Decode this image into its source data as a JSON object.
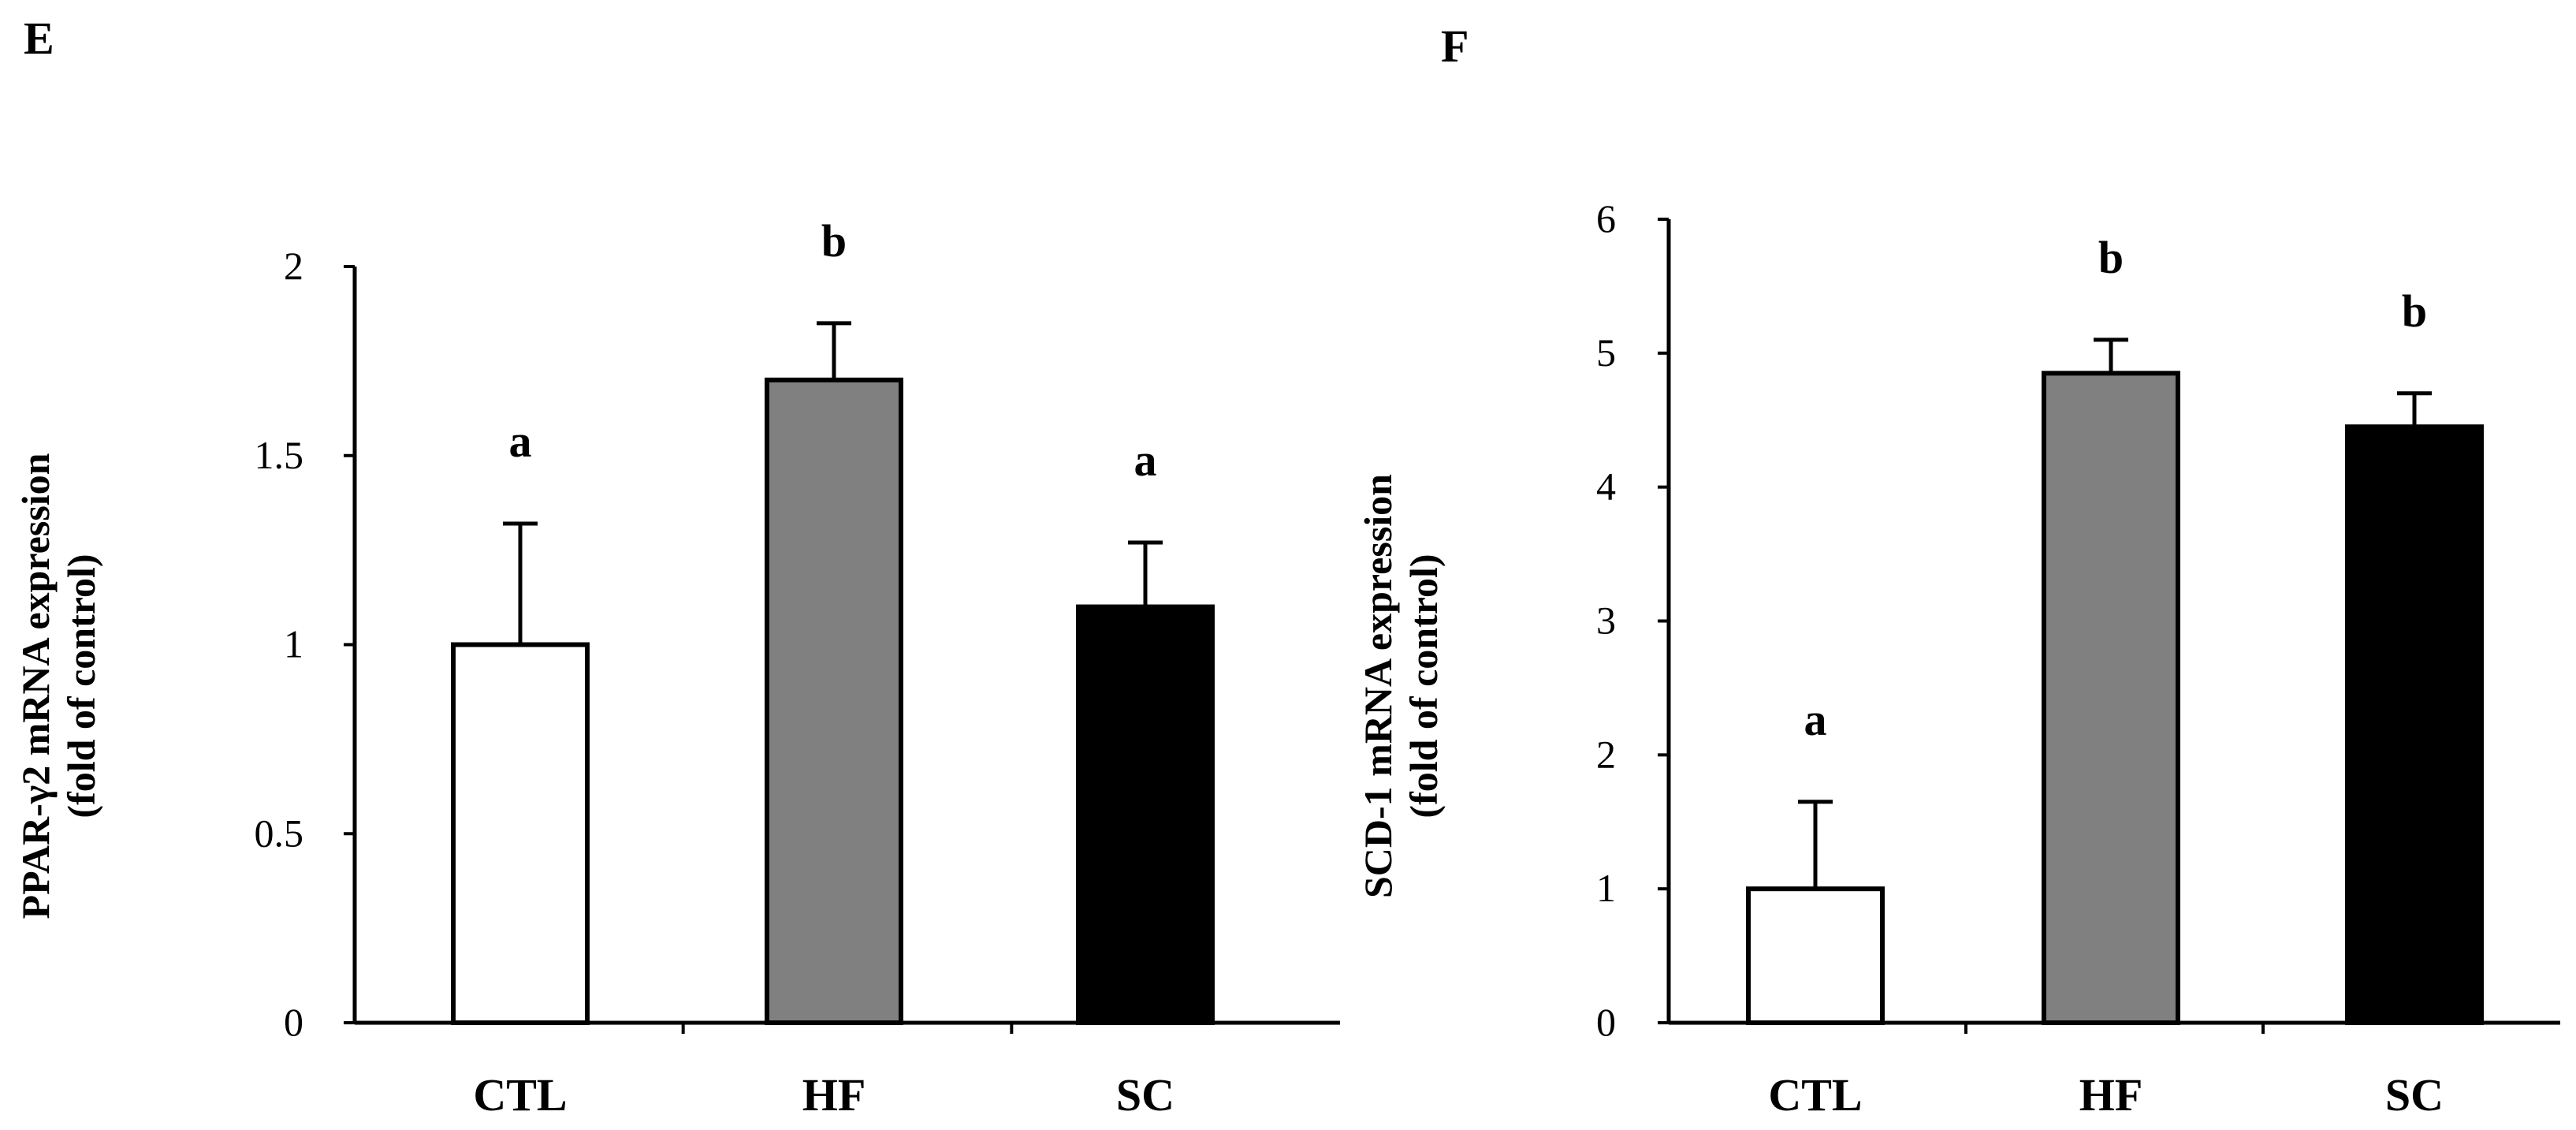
{
  "figure": {
    "panels": [
      "E",
      "F"
    ]
  },
  "chart_data": [
    {
      "panel": "E",
      "type": "bar",
      "categories": [
        "CTL",
        "HF",
        "SC"
      ],
      "values": [
        1.0,
        1.7,
        1.1
      ],
      "errors": [
        0.32,
        0.15,
        0.17
      ],
      "significance": [
        "a",
        "b",
        "a"
      ],
      "bar_colors": [
        "#ffffff",
        "#808080",
        "#000000"
      ],
      "ylabel_line1": "PPAR-γ2 mRNA expression",
      "ylabel_line2": "(fold of control)",
      "xlabel": "",
      "ylim": [
        0,
        2
      ],
      "yticks": [
        0,
        0.5,
        1,
        1.5,
        2
      ],
      "ytick_labels": [
        "0",
        "0.5",
        "1",
        "1.5",
        "2"
      ],
      "grid": false
    },
    {
      "panel": "F",
      "type": "bar",
      "categories": [
        "CTL",
        "HF",
        "SC"
      ],
      "values": [
        1.0,
        4.85,
        4.45
      ],
      "errors": [
        0.65,
        0.25,
        0.25
      ],
      "significance": [
        "a",
        "b",
        "b"
      ],
      "bar_colors": [
        "#ffffff",
        "#808080",
        "#000000"
      ],
      "ylabel_line1": "SCD-1 mRNA expression",
      "ylabel_line2": "(fold of control)",
      "xlabel": "",
      "ylim": [
        0,
        6
      ],
      "yticks": [
        0,
        1,
        2,
        3,
        4,
        5,
        6
      ],
      "ytick_labels": [
        "0",
        "1",
        "2",
        "3",
        "4",
        "5",
        "6"
      ],
      "grid": false
    }
  ]
}
